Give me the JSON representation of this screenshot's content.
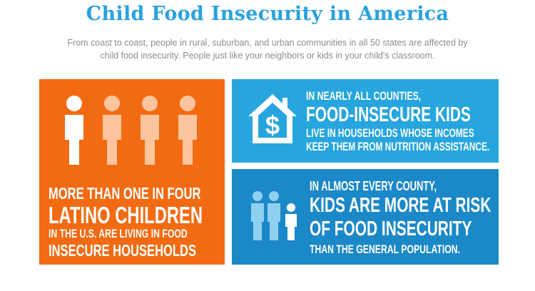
{
  "header": {
    "title": "Child Food Insecurity in America",
    "subtitle": "From coast to coast, people in rural, suburban, and urban communities in all 50 states are affected by child food insecurity. People just like your neighbors or kids in your child's classroom."
  },
  "panel_latino": {
    "line1": "MORE THAN ONE IN FOUR",
    "line2": "LATINO CHILDREN",
    "line3": "IN THE U.S. ARE LIVING IN FOOD",
    "line4": "INSECURE HOUSEHOLDS",
    "highlighted_figures": 1,
    "total_figures": 4,
    "icon": "people-figures-icon"
  },
  "panel_counties": {
    "line1": "IN NEARLY ALL COUNTIES,",
    "line2": "FOOD-INSECURE KIDS",
    "line3": "LIVE IN HOUSEHOLDS WHOSE INCOMES",
    "line4": "KEEP THEM FROM NUTRITION ASSISTANCE.",
    "icon_symbol": "$",
    "icon": "house-dollar-icon"
  },
  "panel_risk": {
    "line1": "IN ALMOST EVERY COUNTY,",
    "line2": "KIDS ARE MORE AT RISK",
    "line3": "OF FOOD INSECURITY",
    "line4": "THAN THE GENERAL POPULATION.",
    "icon": "family-figures-icon"
  },
  "colors": {
    "title": "#2aa2dd",
    "subtitle": "#8d8d8d",
    "orange": "#f26b12",
    "light_blue": "#27a5df",
    "dark_blue": "#1b88c7",
    "figure_faded": "#fcc59e",
    "family_faded": "#8fd0f0"
  }
}
